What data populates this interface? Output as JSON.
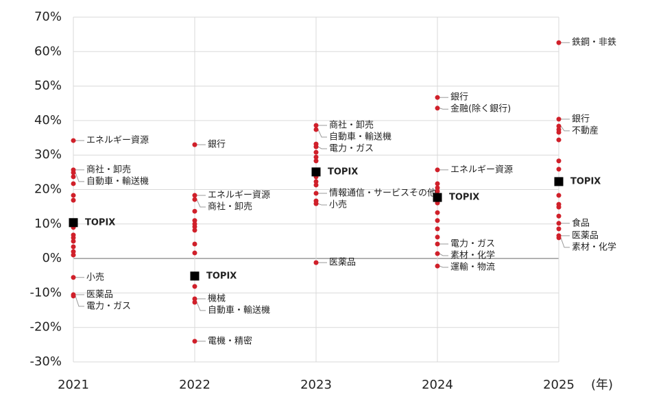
{
  "chart_data": {
    "type": "dotplot",
    "categories": [
      "2021",
      "2022",
      "2023",
      "2024",
      "2025"
    ],
    "xlabel": "(年)",
    "ylim": [
      -30,
      70
    ],
    "yticks": [
      {
        "value": -30,
        "label": "-30%"
      },
      {
        "value": -20,
        "label": "-20%"
      },
      {
        "value": -10,
        "label": "-10%"
      },
      {
        "value": 0,
        "label": "0%"
      },
      {
        "value": 10,
        "label": "10%"
      },
      {
        "value": 20,
        "label": "20%"
      },
      {
        "value": 30,
        "label": "30%"
      },
      {
        "value": 40,
        "label": "40%"
      },
      {
        "value": 50,
        "label": "50%"
      },
      {
        "value": 60,
        "label": "60%"
      },
      {
        "value": 70,
        "label": "70%"
      }
    ],
    "grid": true,
    "sector_color": "#d0202a",
    "benchmark": {
      "name": "TOPIX",
      "color": "#000000",
      "values": [
        10.4,
        -5.1,
        25.1,
        17.7,
        22.3
      ]
    },
    "groups": [
      {
        "labeled": [
          {
            "name": "エネルギー資源",
            "value": 34.2
          },
          {
            "name": "商社・卸売",
            "value": 25.7
          },
          {
            "name": "自動車・輸送機",
            "value": 24.9
          },
          {
            "name": "小売",
            "value": -5.5
          },
          {
            "name": "医薬品",
            "value": -10.5
          },
          {
            "name": "電力・ガス",
            "value": -10.9
          }
        ],
        "others": [
          23.7,
          21.7,
          18.3,
          16.9,
          9.0,
          6.8,
          6.0,
          5.0,
          3.4,
          2.0,
          1.0
        ]
      },
      {
        "labeled": [
          {
            "name": "銀行",
            "value": 33.0
          },
          {
            "name": "エネルギー資源",
            "value": 18.3
          },
          {
            "name": "商社・卸売",
            "value": 17.1
          },
          {
            "name": "機械",
            "value": -11.7
          },
          {
            "name": "自動車・輸送機",
            "value": -12.7
          },
          {
            "name": "電機・精密",
            "value": -24.0
          }
        ],
        "others": [
          13.7,
          11.0,
          10.0,
          9.2,
          8.2,
          4.2,
          1.6,
          -8.1
        ]
      },
      {
        "labeled": [
          {
            "name": "商社・卸売",
            "value": 38.6
          },
          {
            "name": "自動車・輸送機",
            "value": 37.4
          },
          {
            "name": "電力・ガス",
            "value": 32.4
          },
          {
            "name": "情報通信・サービスその他",
            "value": 18.9
          },
          {
            "name": "小売",
            "value": 15.9
          },
          {
            "name": "医薬品",
            "value": -1.2
          }
        ],
        "others": [
          33.2,
          30.8,
          29.4,
          28.3,
          23.7,
          22.3,
          21.3,
          16.7
        ]
      },
      {
        "labeled": [
          {
            "name": "銀行",
            "value": 46.7
          },
          {
            "name": "金融(除く銀行)",
            "value": 43.6
          },
          {
            "name": "エネルギー資源",
            "value": 25.7
          },
          {
            "name": "電力・ガス",
            "value": 4.2
          },
          {
            "name": "素材・化学",
            "value": 1.4
          },
          {
            "name": "運輸・物流",
            "value": -2.2
          }
        ],
        "others": [
          21.7,
          20.5,
          19.5,
          18.5,
          16.1,
          13.3,
          11.0,
          8.6,
          6.2
        ]
      },
      {
        "labeled": [
          {
            "name": "鉄鋼・非鉄",
            "value": 62.6
          },
          {
            "name": "銀行",
            "value": 40.4
          },
          {
            "name": "不動産",
            "value": 38.4
          },
          {
            "name": "食品",
            "value": 10.2
          },
          {
            "name": "医薬品",
            "value": 6.6
          },
          {
            "name": "素材・化学",
            "value": 6.0
          }
        ],
        "others": [
          37.4,
          36.6,
          34.4,
          28.3,
          25.9,
          18.3,
          15.7,
          14.9,
          12.3,
          8.6
        ]
      }
    ]
  }
}
